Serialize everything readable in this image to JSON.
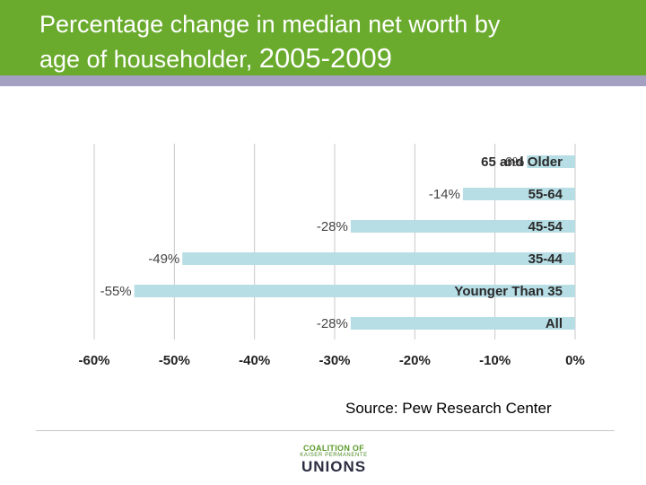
{
  "slide": {
    "title_line1": "Percentage change in median net worth by",
    "title_line2_prefix": "age of householder, ",
    "title_line2_years": "2005-2009",
    "source": "Source: Pew Research Center"
  },
  "logo": {
    "line1": "COALITION OF",
    "line2": "KAISER PERMANENTE",
    "line3": "UNIONS"
  },
  "colors": {
    "header_green": "#6aab2e",
    "header_strip": "#a4a0c2",
    "bar": "#b7dde5",
    "gridline": "#c8c8c8"
  },
  "chart_data": {
    "type": "bar",
    "orientation": "horizontal",
    "categories": [
      "65 and Older",
      "55-64",
      "45-54",
      "35-44",
      "Younger Than 35",
      "All"
    ],
    "values": [
      -6,
      -14,
      -28,
      -49,
      -55,
      -28
    ],
    "data_labels": [
      "-6%",
      "-14%",
      "-28%",
      "-49%",
      "-55%",
      "-28%"
    ],
    "xlim": [
      -60,
      0
    ],
    "xticks": [
      -60,
      -50,
      -40,
      -30,
      -20,
      -10,
      0
    ],
    "xtick_labels": [
      "-60%",
      "-50%",
      "-40%",
      "-30%",
      "-20%",
      "-10%",
      "0%"
    ],
    "grid": true,
    "legend": "none",
    "title": "",
    "xlabel": "",
    "ylabel": ""
  }
}
